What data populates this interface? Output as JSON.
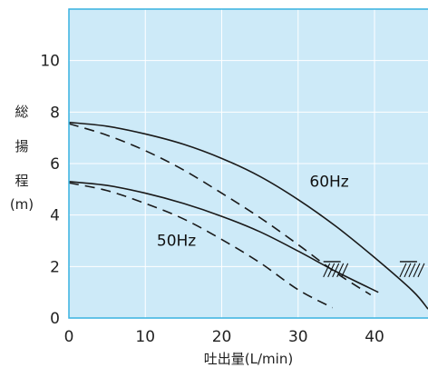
{
  "chart_data": {
    "type": "line",
    "title": "",
    "xlabel": "吐出量(L/min)",
    "ylabel": [
      "総",
      "揚",
      "程",
      "(m)"
    ],
    "xlim": [
      0,
      47
    ],
    "ylim": [
      0,
      12
    ],
    "xticks": [
      0,
      10,
      20,
      30,
      40
    ],
    "yticks": [
      0,
      2,
      4,
      6,
      8,
      10
    ],
    "grid": true,
    "background_color": "#cdeaf8",
    "frame_color": "#38b2e0",
    "grid_color": "#ffffff",
    "line_color": "#1a1a1a",
    "series": [
      {
        "name": "60Hz",
        "style": "solid",
        "x": [
          0,
          5,
          10,
          15,
          20,
          25,
          30,
          35,
          40,
          45,
          47
        ],
        "y": [
          7.6,
          7.45,
          7.15,
          6.75,
          6.2,
          5.5,
          4.6,
          3.55,
          2.35,
          1.05,
          0.35
        ]
      },
      {
        "name": "",
        "style": "dashed",
        "x": [
          0,
          5,
          10,
          15,
          20,
          25,
          30,
          35,
          39.5
        ],
        "y": [
          7.55,
          7.1,
          6.5,
          5.75,
          4.85,
          3.9,
          2.85,
          1.75,
          0.9
        ]
      },
      {
        "name": "50Hz",
        "style": "solid",
        "x": [
          0,
          5,
          10,
          15,
          20,
          25,
          30,
          35,
          40.5
        ],
        "y": [
          5.3,
          5.15,
          4.85,
          4.45,
          3.95,
          3.35,
          2.6,
          1.8,
          1.0
        ]
      },
      {
        "name": "",
        "style": "dashed",
        "x": [
          0,
          5,
          10,
          15,
          20,
          25,
          30,
          34.5
        ],
        "y": [
          5.25,
          4.95,
          4.45,
          3.85,
          3.05,
          2.15,
          1.1,
          0.4
        ]
      }
    ],
    "hatched_markers": [
      {
        "x": 34.5,
        "y": 2.05
      },
      {
        "x": 44.5,
        "y": 2.05
      }
    ],
    "annotations": [
      {
        "text": "60Hz",
        "x": 31.5,
        "y": 5.1
      },
      {
        "text": "50Hz",
        "x": 11.5,
        "y": 2.8
      }
    ]
  }
}
